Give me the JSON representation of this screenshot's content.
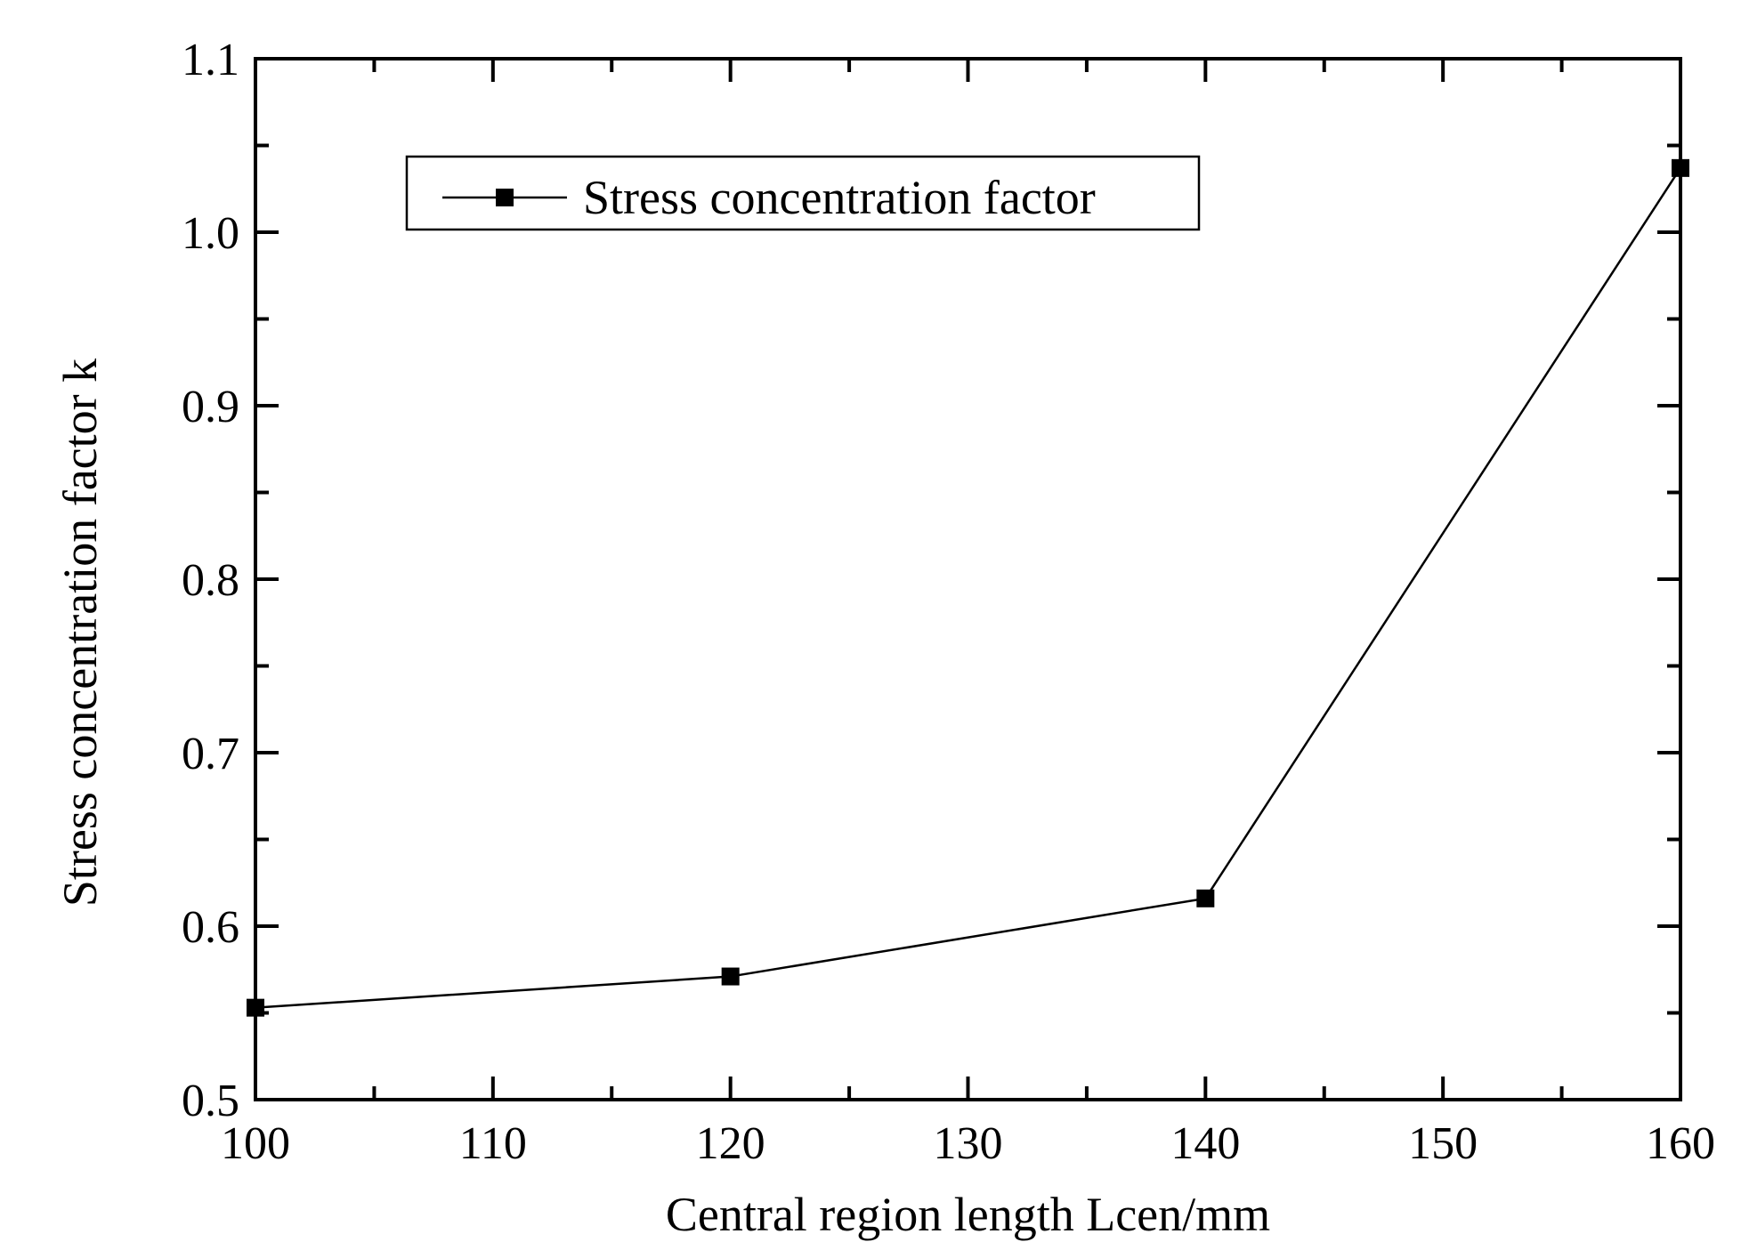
{
  "chart_data": {
    "type": "line",
    "title": "",
    "xlabel": "Central region length Lcen/mm",
    "ylabel": "Stress concentration factor k",
    "xlim": [
      100,
      160
    ],
    "ylim": [
      0.5,
      1.1
    ],
    "xticks": [
      100,
      110,
      120,
      130,
      140,
      150,
      160
    ],
    "xtick_labels": [
      "100",
      "110",
      "120",
      "130",
      "140",
      "150",
      "160"
    ],
    "yticks": [
      0.5,
      0.6,
      0.7,
      0.8,
      0.9,
      1.0,
      1.1
    ],
    "ytick_labels": [
      "0.5",
      "0.6",
      "0.7",
      "0.8",
      "0.9",
      "1.0",
      "1.1"
    ],
    "grid": false,
    "legend_position": "top-left",
    "series": [
      {
        "name": "Stress concentration factor",
        "marker": "square",
        "color": "#000000",
        "x": [
          100,
          120,
          140,
          160
        ],
        "y": [
          0.553,
          0.571,
          0.616,
          1.037
        ]
      }
    ]
  }
}
